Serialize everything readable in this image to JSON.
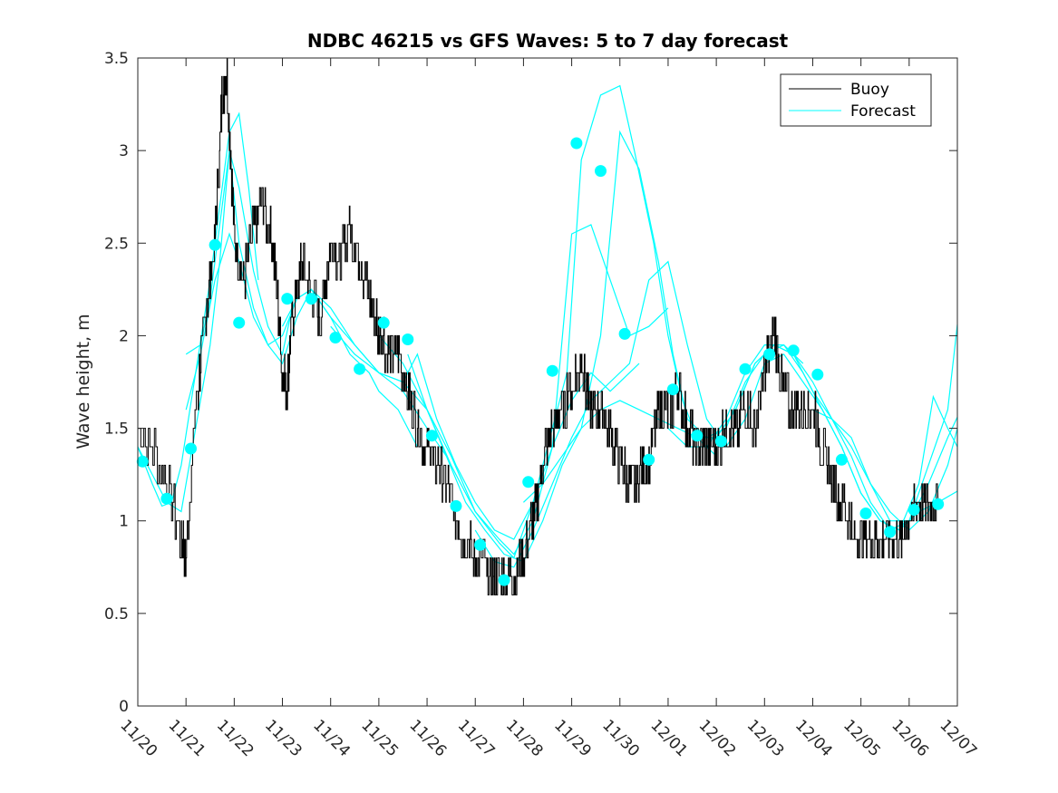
{
  "chart_data": {
    "type": "line",
    "title": "NDBC 46215 vs GFS Waves: 5 to 7 day forecast",
    "xlabel": "",
    "ylabel": "Wave height, m",
    "xlim": [
      0,
      17
    ],
    "ylim": [
      0,
      3.5
    ],
    "xticks": [
      0,
      1,
      2,
      3,
      4,
      5,
      6,
      7,
      8,
      9,
      10,
      11,
      12,
      13,
      14,
      15,
      16,
      17
    ],
    "xtick_labels": [
      "11/20",
      "11/21",
      "11/22",
      "11/23",
      "11/24",
      "11/25",
      "11/26",
      "11/27",
      "11/28",
      "11/29",
      "11/30",
      "12/01",
      "12/02",
      "12/03",
      "12/04",
      "12/05",
      "12/06",
      "12/07"
    ],
    "yticks": [
      0,
      0.5,
      1,
      1.5,
      2,
      2.5,
      3,
      3.5
    ],
    "ytick_labels": [
      "0",
      "0.5",
      "1",
      "1.5",
      "2",
      "2.5",
      "3",
      "3.5"
    ],
    "legend": {
      "position": "top-right",
      "entries": [
        "Buoy",
        "Forecast"
      ]
    },
    "colors": {
      "buoy": "#000000",
      "forecast": "#00ffff",
      "axes": "#262626"
    },
    "buoy": {
      "name": "Buoy",
      "x": [
        0,
        0.5,
        0.9,
        1,
        1.2,
        1.4,
        1.6,
        1.75,
        1.85,
        2,
        2.2,
        2.4,
        2.6,
        2.8,
        3,
        3.1,
        3.2,
        3.4,
        3.6,
        3.8,
        4,
        4.2,
        4.4,
        4.6,
        4.8,
        5,
        5.2,
        5.4,
        5.6,
        5.8,
        6,
        6.2,
        6.4,
        6.6,
        6.8,
        7,
        7.2,
        7.4,
        7.6,
        7.8,
        8,
        8.2,
        8.4,
        8.6,
        8.8,
        9,
        9.2,
        9.4,
        9.6,
        9.8,
        10,
        10.2,
        10.4,
        10.6,
        10.8,
        11,
        11.2,
        11.4,
        11.6,
        11.8,
        12,
        12.2,
        12.4,
        12.6,
        12.8,
        13,
        13.2,
        13.4,
        13.6,
        13.8,
        14,
        14.2,
        14.4,
        14.6,
        14.8,
        15,
        15.2,
        15.4,
        15.6,
        15.8,
        16,
        16.2,
        16.4,
        16.6
      ],
      "y": [
        1.5,
        1.3,
        0.9,
        0.8,
        1.6,
        2.1,
        2.5,
        3.3,
        3.4,
        2.5,
        2.3,
        2.6,
        2.7,
        2.5,
        1.8,
        1.7,
        2.1,
        2.4,
        2.2,
        2.1,
        2.5,
        2.4,
        2.6,
        2.4,
        2.2,
        2.0,
        1.9,
        1.9,
        1.7,
        1.5,
        1.4,
        1.3,
        1.2,
        1.0,
        0.9,
        0.8,
        0.75,
        0.7,
        0.72,
        0.7,
        0.8,
        1.0,
        1.3,
        1.5,
        1.6,
        1.7,
        1.9,
        1.55,
        1.6,
        1.5,
        1.3,
        1.2,
        1.25,
        1.3,
        1.6,
        1.6,
        1.7,
        1.5,
        1.4,
        1.4,
        1.4,
        1.5,
        1.5,
        1.6,
        1.5,
        1.8,
        2.0,
        1.7,
        1.6,
        1.55,
        1.6,
        1.4,
        1.2,
        1.1,
        0.95,
        0.9,
        0.85,
        0.9,
        0.85,
        0.9,
        1.0,
        1.1,
        1.05,
        1.1
      ]
    },
    "forecast": {
      "name": "Forecast",
      "series": [
        {
          "x": [
            0,
            0.3,
            0.5,
            0.7,
            0.9,
            1.2,
            1.5,
            1.7,
            1.9,
            2.1,
            2.3,
            2.5
          ],
          "y": [
            1.4,
            1.2,
            1.08,
            1.1,
            1.3,
            1.8,
            2.3,
            2.7,
            3.1,
            3.2,
            2.8,
            2.3
          ]
        },
        {
          "x": [
            0,
            0.3,
            0.6,
            0.9,
            1.2,
            1.5,
            1.7,
            1.9,
            2.1,
            2.4,
            2.7,
            3.0,
            3.2
          ],
          "y": [
            1.4,
            1.25,
            1.1,
            1.05,
            1.5,
            1.95,
            2.4,
            3.0,
            2.8,
            2.35,
            2.05,
            1.9,
            2.15
          ]
        },
        {
          "x": [
            1.0,
            1.3,
            1.5,
            1.7,
            1.9,
            2.1,
            2.4,
            2.7,
            3.0,
            3.3,
            3.6,
            4.0,
            4.4,
            4.8,
            5.0,
            5.4,
            5.8
          ],
          "y": [
            1.9,
            1.95,
            2.2,
            2.6,
            3.0,
            2.5,
            2.15,
            1.95,
            1.85,
            2.1,
            2.25,
            2.1,
            1.9,
            1.8,
            1.7,
            1.6,
            1.4
          ]
        },
        {
          "x": [
            1.0,
            1.3,
            1.6,
            1.9,
            2.1,
            2.4,
            2.7,
            3.0,
            3.3,
            3.6,
            4.0,
            4.5,
            5.0,
            5.5,
            6.0,
            6.4
          ],
          "y": [
            1.6,
            1.9,
            2.3,
            2.55,
            2.4,
            2.1,
            1.95,
            2.0,
            2.2,
            2.25,
            2.1,
            1.95,
            1.8,
            1.7,
            1.5,
            1.35
          ]
        },
        {
          "x": [
            3.0,
            3.3,
            3.6,
            4.0,
            4.5,
            5.0,
            5.5,
            5.8,
            6.2,
            6.6,
            7.0,
            7.4,
            7.8,
            8.2,
            8.6,
            9.0,
            9.4,
            9.8,
            10.2,
            10.4
          ],
          "y": [
            2.05,
            2.2,
            2.25,
            2.15,
            1.95,
            1.8,
            1.75,
            1.9,
            1.55,
            1.3,
            1.1,
            0.95,
            0.9,
            1.1,
            1.4,
            1.65,
            1.8,
            1.7,
            1.8,
            1.85
          ]
        },
        {
          "x": [
            4.0,
            4.5,
            5.0,
            5.5,
            6.0,
            6.5,
            7.0,
            7.5,
            7.8,
            8.2,
            8.6,
            9.0,
            9.4,
            9.8,
            10.2,
            10.6,
            11.0
          ],
          "y": [
            2.05,
            1.9,
            1.8,
            1.75,
            1.6,
            1.35,
            1.05,
            0.9,
            0.82,
            1.0,
            1.4,
            2.55,
            2.6,
            2.3,
            2.0,
            2.05,
            2.15
          ]
        },
        {
          "x": [
            5.0,
            5.5,
            6.0,
            6.5,
            7.0,
            7.5,
            7.8,
            8.2,
            8.6,
            8.9,
            9.2,
            9.6,
            10.0,
            10.3,
            10.7,
            11.0,
            11.3,
            11.6,
            12.0
          ],
          "y": [
            2.0,
            1.85,
            1.6,
            1.3,
            1.05,
            0.88,
            0.8,
            1.1,
            1.5,
            1.8,
            2.95,
            3.3,
            3.35,
            3.0,
            2.5,
            2.0,
            1.65,
            1.45,
            1.35
          ]
        },
        {
          "x": [
            5.6,
            6.0,
            6.4,
            6.8,
            7.2,
            7.6,
            8.0,
            8.4,
            8.8,
            9.2,
            9.6,
            10.0,
            10.4,
            10.8,
            11.1,
            11.4,
            11.8,
            12.2,
            12.6,
            13.0,
            13.4,
            13.8
          ],
          "y": [
            1.9,
            1.6,
            1.35,
            1.1,
            0.95,
            0.82,
            0.78,
            1.0,
            1.3,
            1.5,
            2.0,
            3.1,
            2.9,
            2.4,
            1.9,
            1.55,
            1.45,
            1.5,
            1.75,
            1.9,
            1.95,
            1.85
          ]
        },
        {
          "x": [
            7.0,
            7.4,
            7.8,
            8.2,
            8.6,
            9.0,
            9.4,
            9.8,
            10.2,
            10.6,
            11.0,
            11.4,
            11.8,
            12.2,
            12.6,
            13.0,
            13.4,
            13.8,
            14.2,
            14.6,
            15.0
          ],
          "y": [
            0.95,
            0.78,
            0.75,
            0.95,
            1.2,
            1.45,
            1.65,
            1.75,
            1.85,
            2.3,
            2.4,
            1.95,
            1.55,
            1.4,
            1.55,
            1.85,
            1.9,
            1.75,
            1.6,
            1.4,
            1.15
          ]
        },
        {
          "x": [
            8.0,
            8.4,
            8.8,
            9.2,
            9.6,
            10.0,
            10.4,
            10.8,
            11.2,
            11.6,
            12.0,
            12.4,
            12.8,
            13.2,
            13.6,
            14.0,
            14.4,
            14.8,
            15.2,
            15.6,
            16.0,
            16.4,
            16.8,
            17.0
          ],
          "y": [
            1.1,
            1.2,
            1.35,
            1.5,
            1.6,
            1.65,
            1.6,
            1.55,
            1.5,
            1.45,
            1.45,
            1.6,
            1.85,
            1.95,
            1.9,
            1.75,
            1.55,
            1.4,
            1.2,
            1.05,
            0.95,
            1.05,
            1.3,
            1.5
          ]
        },
        {
          "x": [
            11.0,
            11.4,
            11.8,
            12.2,
            12.6,
            13.0,
            13.4,
            13.8,
            14.2,
            14.6,
            15.0,
            15.4,
            15.8,
            16.2,
            16.5,
            16.8,
            17.0
          ],
          "y": [
            1.5,
            1.4,
            1.4,
            1.55,
            1.8,
            1.95,
            1.95,
            1.8,
            1.6,
            1.4,
            1.15,
            1.0,
            0.95,
            1.2,
            1.67,
            1.5,
            1.4
          ]
        },
        {
          "x": [
            12.0,
            12.4,
            12.8,
            13.2,
            13.6,
            14.0,
            14.4,
            14.8,
            15.2,
            15.6,
            16.0,
            16.4,
            16.8,
            17.0
          ],
          "y": [
            1.45,
            1.6,
            1.85,
            1.95,
            1.9,
            1.7,
            1.55,
            1.45,
            1.2,
            1.0,
            1.0,
            1.3,
            1.6,
            2.06
          ]
        },
        {
          "x": [
            14.0,
            14.4,
            14.8,
            15.2,
            15.6,
            16.0,
            16.4,
            16.8,
            17.0
          ],
          "y": [
            1.6,
            1.55,
            1.35,
            1.1,
            0.95,
            1.0,
            1.2,
            1.45,
            1.56
          ]
        },
        {
          "x": [
            15.0,
            15.4,
            15.8,
            16.2,
            16.6,
            17.0
          ],
          "y": [
            1.15,
            1.0,
            0.95,
            1.05,
            1.1,
            1.16
          ]
        }
      ],
      "markers": {
        "x": [
          0.1,
          0.6,
          1.1,
          1.6,
          2.1,
          3.1,
          3.6,
          4.1,
          4.6,
          5.1,
          5.6,
          6.1,
          6.6,
          7.1,
          7.6,
          8.1,
          8.6,
          9.1,
          9.6,
          10.1,
          10.6,
          11.1,
          11.6,
          12.1,
          12.6,
          13.1,
          13.6,
          14.1,
          14.6,
          15.1,
          15.6,
          16.1,
          16.6
        ],
        "y": [
          1.32,
          1.12,
          1.39,
          2.49,
          2.07,
          2.2,
          2.2,
          1.99,
          1.82,
          2.07,
          1.98,
          1.46,
          1.08,
          0.87,
          0.68,
          1.21,
          1.81,
          3.04,
          2.89,
          2.01,
          1.33,
          1.71,
          1.46,
          1.43,
          1.82,
          1.9,
          1.92,
          1.79,
          1.33,
          1.04,
          0.94,
          1.06,
          1.09
        ]
      }
    }
  }
}
